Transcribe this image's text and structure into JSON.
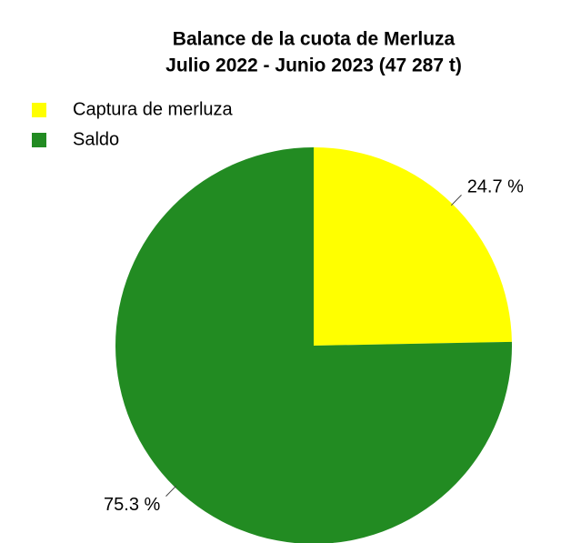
{
  "chart_data": {
    "type": "pie",
    "title": "Balance de la cuota de Merluza",
    "subtitle": "Julio 2022 - Junio 2023 (47 287 t)",
    "categories": [
      "Captura de merluza",
      "Saldo"
    ],
    "values": [
      24.7,
      75.3
    ],
    "value_labels": [
      "24.7 %",
      "75.3 %"
    ],
    "colors": [
      "#ffff00",
      "#228b22"
    ],
    "legend": "top-left"
  }
}
